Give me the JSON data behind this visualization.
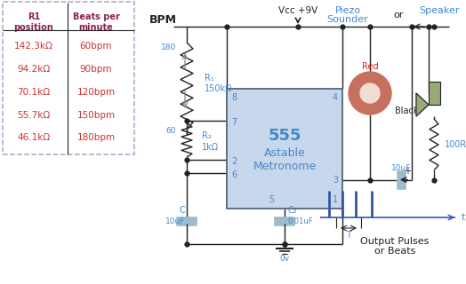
{
  "bg_color": "#ffffff",
  "table_border_color": "#b0a0c8",
  "table_header_color": "#8b2252",
  "table_data_color": "#cc3333",
  "blue_color": "#4488cc",
  "dark_color": "#222222",
  "chip_fill": "#c8d8ec",
  "chip_border": "#556677",
  "green_fill": "#99aa77",
  "piezo_outer": "#c87060",
  "piezo_inner": "#f0ddd0",
  "cap_fill": "#99bbcc",
  "pulse_color": "#3355aa",
  "pulse_dark": "#334488",
  "gray_arrow": "#888888",
  "table_rows": [
    [
      "142.3kΩ",
      "60bpm"
    ],
    [
      "94.2kΩ",
      "90bpm"
    ],
    [
      "70.1kΩ",
      "120bpm"
    ],
    [
      "55.7kΩ",
      "150bpm"
    ],
    [
      "46.1kΩ",
      "180bpm"
    ]
  ]
}
